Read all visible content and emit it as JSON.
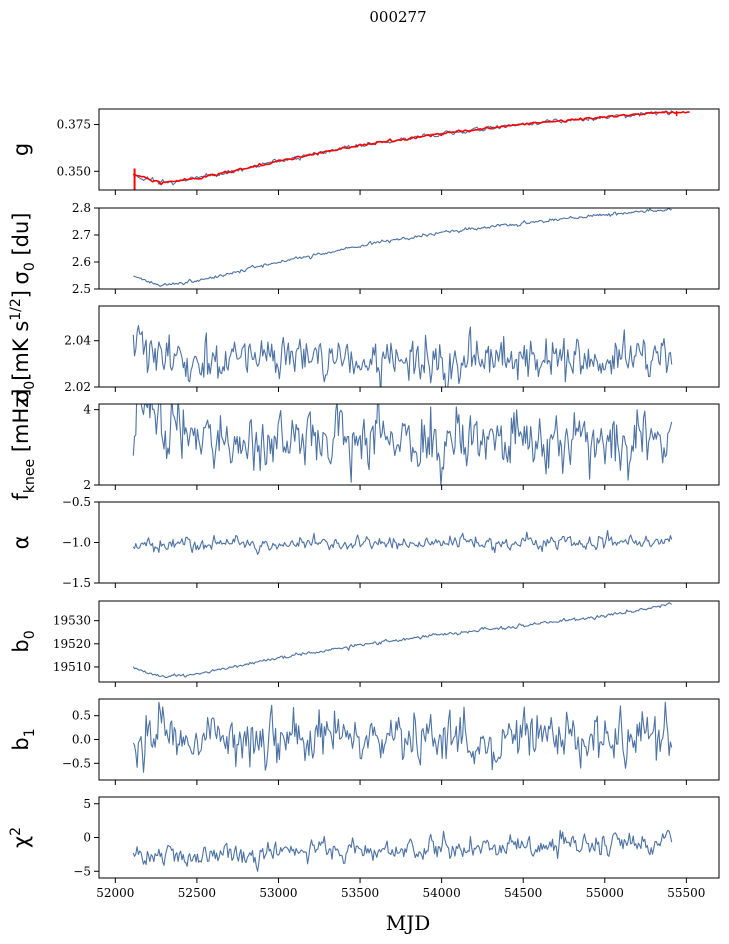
{
  "figure_title": "000277",
  "chart_data": {
    "type": "line",
    "title": "000277",
    "xlabel": "MJD",
    "xlim": [
      51900,
      55700
    ],
    "xticks": [
      52000,
      52500,
      53000,
      53500,
      54000,
      54500,
      55000,
      55500
    ],
    "xtick_labels": [
      "52000",
      "52500",
      "53000",
      "53500",
      "54000",
      "54500",
      "55000",
      "55500"
    ],
    "x_range": [
      52110,
      55410
    ],
    "line_color": "#4c72a4",
    "overlay_color": "#ff0000",
    "panels": [
      {
        "name": "g",
        "ylabel": "g",
        "ylim": [
          0.34,
          0.3833
        ],
        "yticks": [
          0.35,
          0.375
        ],
        "ytick_labels": [
          "0.350",
          "0.375"
        ],
        "trend": [
          [
            52110,
            0.3485
          ],
          [
            52280,
            0.3438
          ],
          [
            52500,
            0.3462
          ],
          [
            53000,
            0.3555
          ],
          [
            53500,
            0.364
          ],
          [
            54000,
            0.37
          ],
          [
            54500,
            0.3752
          ],
          [
            55000,
            0.379
          ],
          [
            55300,
            0.381
          ],
          [
            55500,
            0.382
          ]
        ],
        "noise": 0.0006,
        "overlay": "red",
        "overlay_x_range": [
          52110,
          55520
        ]
      },
      {
        "name": "sigma0",
        "ylabel": "σ0 [du]",
        "ylim": [
          2.5,
          2.8
        ],
        "yticks": [
          2.5,
          2.6,
          2.7,
          2.8
        ],
        "ytick_labels": [
          "2.5",
          "2.6",
          "2.7",
          "2.8"
        ],
        "trend": [
          [
            52130,
            2.545
          ],
          [
            52250,
            2.515
          ],
          [
            52500,
            2.53
          ],
          [
            53000,
            2.6
          ],
          [
            53500,
            2.66
          ],
          [
            54000,
            2.71
          ],
          [
            54500,
            2.745
          ],
          [
            55000,
            2.775
          ],
          [
            55400,
            2.795
          ]
        ],
        "noise": 0.003
      },
      {
        "name": "sigma0-mk",
        "ylabel": "σ0[mK s^1/2]",
        "ylim": [
          2.02,
          2.055
        ],
        "yticks": [
          2.02,
          2.04
        ],
        "ytick_labels": [
          "2.02",
          "2.04"
        ],
        "trend": [
          [
            52130,
            2.041
          ],
          [
            52300,
            2.032
          ],
          [
            55400,
            2.032
          ]
        ],
        "noise": 0.0045
      },
      {
        "name": "fknee",
        "ylabel": "f_knee [mHz]",
        "ylim": [
          2,
          4.15
        ],
        "yticks": [
          2,
          4
        ],
        "ytick_labels": [
          "2",
          "4"
        ],
        "trend": [
          [
            52130,
            3.7
          ],
          [
            52400,
            3.4
          ],
          [
            53000,
            3.2
          ],
          [
            55400,
            3.1
          ]
        ],
        "noise": 0.38
      },
      {
        "name": "alpha",
        "ylabel": "α",
        "ylim": [
          -1.5,
          -0.5
        ],
        "yticks": [
          -1.5,
          -1.0,
          -0.5
        ],
        "ytick_labels": [
          "−1.5",
          "−1.0",
          "−0.5"
        ],
        "trend": [
          [
            52130,
            -1.03
          ],
          [
            55400,
            -0.99
          ]
        ],
        "noise": 0.04
      },
      {
        "name": "b0",
        "ylabel": "b0",
        "ylim": [
          19503.5,
          19538.5
        ],
        "yticks": [
          19510,
          19520,
          19530
        ],
        "ytick_labels": [
          "19510",
          "19520",
          "19530"
        ],
        "trend": [
          [
            52130,
            19509
          ],
          [
            52300,
            19505.5
          ],
          [
            52500,
            19507
          ],
          [
            53000,
            19514
          ],
          [
            53500,
            19519.5
          ],
          [
            54000,
            19524
          ],
          [
            54500,
            19528
          ],
          [
            55000,
            19532
          ],
          [
            55400,
            19537
          ]
        ],
        "noise": 0.35
      },
      {
        "name": "b1",
        "ylabel": "b1",
        "ylim": [
          -0.85,
          0.85
        ],
        "yticks": [
          -0.5,
          0.0,
          0.5
        ],
        "ytick_labels": [
          "−0.5",
          "0.0",
          "0.5"
        ],
        "trend": [
          [
            52130,
            0.05
          ],
          [
            55400,
            0.0
          ]
        ],
        "noise": 0.25
      },
      {
        "name": "chisq",
        "ylabel": "χ2",
        "ylim": [
          -6,
          6
        ],
        "yticks": [
          -5,
          0,
          5
        ],
        "ytick_labels": [
          "−5",
          "0",
          "5"
        ],
        "trend": [
          [
            52130,
            -2.6
          ],
          [
            52500,
            -2.9
          ],
          [
            53500,
            -1.9
          ],
          [
            54500,
            -1.4
          ],
          [
            55400,
            -0.8
          ]
        ],
        "noise": 0.75
      }
    ]
  }
}
